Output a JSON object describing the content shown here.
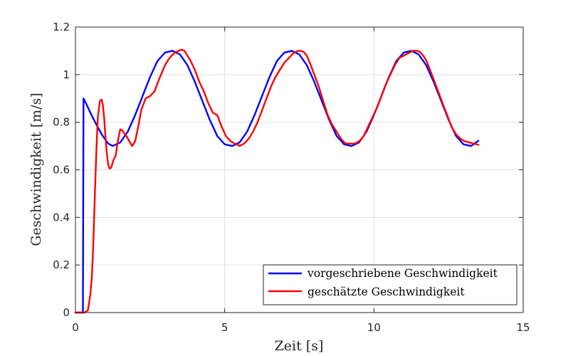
{
  "chart_data": {
    "type": "line",
    "xlabel": "Zeit [s]",
    "ylabel": "Geschwindigkeit [m/s]",
    "xlim": [
      0,
      15
    ],
    "ylim": [
      0,
      1.2
    ],
    "xticks": [
      0,
      5,
      10,
      15
    ],
    "xtick_labels": [
      "0",
      "5",
      "10",
      "15"
    ],
    "yticks": [
      0,
      0.2,
      0.4,
      0.6,
      0.8,
      1.0,
      1.2
    ],
    "ytick_labels": [
      "0",
      "0.2",
      "0.4",
      "0.6",
      "0.8",
      "1",
      "1.2"
    ],
    "grid": true,
    "legend_position": "bottom-right",
    "series": [
      {
        "name": "vorgeschriebene Geschwindigkeit",
        "color": "#0000ff",
        "x": [
          0,
          0.25,
          0.27,
          0.35,
          0.5,
          0.7,
          0.9,
          1.1,
          1.25,
          1.5,
          1.75,
          2.0,
          2.25,
          2.5,
          2.75,
          3.0,
          3.25,
          3.5,
          3.75,
          4.0,
          4.25,
          4.5,
          4.75,
          5.0,
          5.25,
          5.5,
          5.75,
          6.0,
          6.25,
          6.5,
          6.75,
          7.0,
          7.25,
          7.5,
          7.75,
          8.0,
          8.25,
          8.5,
          8.75,
          9.0,
          9.25,
          9.5,
          9.75,
          10.0,
          10.25,
          10.5,
          10.75,
          11.0,
          11.25,
          11.5,
          11.75,
          12.0,
          12.25,
          12.5,
          12.75,
          13.0,
          13.25,
          13.5
        ],
        "y": [
          0,
          0,
          0.9,
          0.88,
          0.84,
          0.79,
          0.745,
          0.71,
          0.7,
          0.715,
          0.76,
          0.83,
          0.91,
          0.99,
          1.058,
          1.093,
          1.1,
          1.085,
          1.04,
          0.97,
          0.89,
          0.81,
          0.742,
          0.707,
          0.7,
          0.715,
          0.76,
          0.83,
          0.91,
          0.99,
          1.058,
          1.093,
          1.1,
          1.085,
          1.04,
          0.97,
          0.89,
          0.81,
          0.742,
          0.707,
          0.7,
          0.715,
          0.76,
          0.83,
          0.91,
          0.99,
          1.058,
          1.093,
          1.1,
          1.085,
          1.04,
          0.97,
          0.89,
          0.81,
          0.742,
          0.707,
          0.7,
          0.722
        ]
      },
      {
        "name": "geschätzte Geschwindigkeit",
        "color": "#ff0000",
        "x": [
          0,
          0.3,
          0.42,
          0.5,
          0.55,
          0.6,
          0.65,
          0.7,
          0.75,
          0.82,
          0.88,
          0.92,
          0.96,
          1.0,
          1.05,
          1.1,
          1.15,
          1.2,
          1.27,
          1.35,
          1.42,
          1.5,
          1.58,
          1.65,
          1.72,
          1.8,
          1.9,
          2.0,
          2.1,
          2.2,
          2.35,
          2.5,
          2.65,
          2.8,
          3.0,
          3.15,
          3.3,
          3.45,
          3.55,
          3.65,
          3.75,
          3.85,
          4.0,
          4.15,
          4.3,
          4.45,
          4.6,
          4.75,
          4.9,
          5.05,
          5.2,
          5.35,
          5.5,
          5.65,
          5.8,
          5.95,
          6.1,
          6.25,
          6.4,
          6.55,
          6.7,
          6.85,
          7.0,
          7.15,
          7.3,
          7.45,
          7.55,
          7.65,
          7.75,
          7.85,
          8.0,
          8.15,
          8.3,
          8.45,
          8.6,
          8.75,
          8.9,
          9.05,
          9.2,
          9.35,
          9.5,
          9.65,
          9.8,
          9.95,
          10.1,
          10.25,
          10.4,
          10.55,
          10.7,
          10.85,
          11.0,
          11.15,
          11.3,
          11.45,
          11.55,
          11.65,
          11.75,
          11.85,
          12.0,
          12.15,
          12.3,
          12.45,
          12.6,
          12.75,
          12.9,
          13.05,
          13.2,
          13.35,
          13.5
        ],
        "y": [
          0,
          0,
          0.01,
          0.08,
          0.15,
          0.3,
          0.5,
          0.68,
          0.82,
          0.89,
          0.895,
          0.87,
          0.82,
          0.75,
          0.67,
          0.62,
          0.605,
          0.61,
          0.64,
          0.66,
          0.72,
          0.77,
          0.765,
          0.75,
          0.74,
          0.72,
          0.7,
          0.72,
          0.78,
          0.85,
          0.9,
          0.91,
          0.93,
          0.98,
          1.04,
          1.07,
          1.09,
          1.1,
          1.105,
          1.1,
          1.08,
          1.06,
          1.02,
          0.97,
          0.93,
          0.88,
          0.84,
          0.83,
          0.78,
          0.74,
          0.72,
          0.71,
          0.7,
          0.71,
          0.73,
          0.76,
          0.8,
          0.85,
          0.9,
          0.95,
          0.99,
          1.02,
          1.05,
          1.07,
          1.09,
          1.1,
          1.1,
          1.095,
          1.08,
          1.05,
          1.0,
          0.95,
          0.89,
          0.83,
          0.79,
          0.76,
          0.73,
          0.71,
          0.71,
          0.71,
          0.72,
          0.74,
          0.78,
          0.82,
          0.86,
          0.91,
          0.96,
          1.0,
          1.04,
          1.07,
          1.08,
          1.09,
          1.1,
          1.1,
          1.095,
          1.08,
          1.06,
          1.03,
          0.98,
          0.93,
          0.88,
          0.83,
          0.78,
          0.75,
          0.73,
          0.72,
          0.715,
          0.71,
          0.705
        ]
      }
    ]
  }
}
